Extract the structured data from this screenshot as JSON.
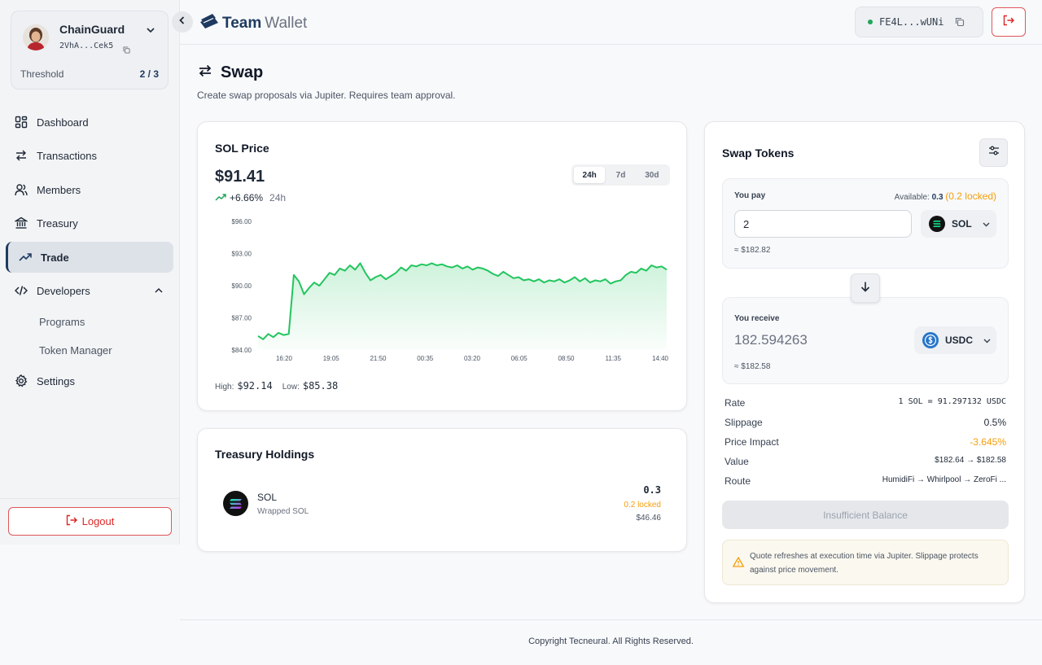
{
  "account": {
    "name": "ChainGuard",
    "address": "2VhA...Cek5",
    "threshold_label": "Threshold",
    "threshold_value": "2 / 3"
  },
  "sidebar": {
    "items": [
      {
        "label": "Dashboard",
        "icon": "dashboard-icon"
      },
      {
        "label": "Transactions",
        "icon": "arrows-icon"
      },
      {
        "label": "Members",
        "icon": "users-icon"
      },
      {
        "label": "Treasury",
        "icon": "bank-icon"
      },
      {
        "label": "Trade",
        "icon": "trend-icon",
        "active": true
      },
      {
        "label": "Developers",
        "icon": "code-icon",
        "expanded": true
      },
      {
        "label": "Settings",
        "icon": "gear-icon"
      }
    ],
    "sub_items": [
      "Programs",
      "Token Manager"
    ],
    "logout_label": "Logout"
  },
  "header": {
    "logo_strong": "Team",
    "logo_light": "Wallet",
    "wallet_address": "FE4L...wUNi"
  },
  "page": {
    "title": "Swap",
    "subtitle": "Create swap proposals via Jupiter. Requires team approval."
  },
  "price_card": {
    "title": "SOL Price",
    "price": "$91.41",
    "change": "+6.66%",
    "change_period": "24h",
    "ranges": [
      "24h",
      "7d",
      "30d"
    ],
    "active_range": "24h",
    "high_label": "High:",
    "high_value": "$92.14",
    "low_label": "Low:",
    "low_value": "$85.38"
  },
  "chart_data": {
    "type": "area",
    "title": "",
    "xlabel": "",
    "ylabel": "",
    "ylim": [
      84,
      96
    ],
    "y_ticks": [
      "$96.00",
      "$93.00",
      "$90.00",
      "$87.00",
      "$84.00"
    ],
    "x_ticks": [
      "16:20",
      "19:05",
      "21:50",
      "00:35",
      "03:20",
      "06:05",
      "08:50",
      "11:35",
      "14:40"
    ],
    "grid": false,
    "color": "#22c55e",
    "x": [
      0,
      1,
      2,
      3,
      4,
      5,
      6,
      7,
      8,
      9,
      10,
      11,
      12,
      13,
      14,
      15,
      16,
      17,
      18,
      19,
      20,
      21,
      22,
      23,
      24,
      25,
      26,
      27,
      28,
      29,
      30,
      31,
      32,
      33,
      34,
      35,
      36,
      37,
      38,
      39,
      40,
      41,
      42,
      43,
      44,
      45,
      46,
      47,
      48,
      49,
      50,
      51,
      52,
      53,
      54,
      55,
      56,
      57,
      58,
      59,
      60,
      61,
      62,
      63,
      64,
      65,
      66,
      67,
      68,
      69,
      70,
      71,
      72,
      73,
      74,
      75,
      76,
      77,
      78,
      79,
      80
    ],
    "values": [
      85.3,
      85.0,
      85.5,
      85.2,
      85.6,
      85.4,
      85.5,
      91.0,
      90.4,
      89.2,
      89.8,
      90.3,
      90.0,
      90.6,
      91.2,
      91.0,
      91.6,
      91.4,
      91.9,
      91.5,
      92.1,
      91.2,
      90.5,
      90.8,
      91.0,
      90.6,
      90.9,
      91.2,
      91.7,
      91.4,
      91.9,
      91.8,
      92.0,
      91.9,
      92.1,
      91.9,
      92.0,
      91.8,
      91.7,
      91.9,
      91.6,
      91.8,
      91.5,
      91.7,
      91.6,
      91.4,
      91.1,
      90.9,
      91.3,
      91.0,
      90.7,
      90.8,
      90.5,
      90.6,
      90.4,
      90.6,
      90.3,
      90.5,
      90.4,
      90.6,
      90.3,
      90.5,
      90.8,
      90.4,
      90.7,
      90.3,
      90.5,
      90.4,
      90.6,
      90.2,
      90.4,
      90.5,
      91.0,
      91.3,
      91.2,
      91.6,
      91.4,
      91.9,
      91.7,
      91.8,
      91.5
    ],
    "series": [
      {
        "name": "SOL",
        "values_ref": "values"
      }
    ]
  },
  "holdings": {
    "title": "Treasury Holdings",
    "items": [
      {
        "symbol": "SOL",
        "name": "Wrapped SOL",
        "amount": "0.3",
        "locked": "0.2 locked",
        "usd": "$46.46"
      }
    ]
  },
  "swap": {
    "title": "Swap Tokens",
    "pay_label": "You pay",
    "available_label": "Available:",
    "available_value": "0.3",
    "available_locked": "(0.2 locked)",
    "pay_amount": "2",
    "pay_token": "SOL",
    "pay_usd": "≈ $182.82",
    "receive_label": "You receive",
    "receive_amount": "182.594263",
    "receive_token": "USDC",
    "receive_usd": "≈ $182.58",
    "details": [
      {
        "label": "Rate",
        "value": "1 SOL = 91.297132 USDC"
      },
      {
        "label": "Slippage",
        "value": "0.5%"
      },
      {
        "label": "Price Impact",
        "value": "-3.645%"
      },
      {
        "label": "Value",
        "value": "$182.64 → $182.58"
      },
      {
        "label": "Route",
        "value": "HumidiFi → Whirlpool → ZeroFi ..."
      }
    ],
    "submit_label": "Insufficient Balance",
    "note": "Quote refreshes at execution time via Jupiter. Slippage protects against price movement."
  },
  "footer": {
    "text": "Copyright Tecneural. All Rights Reserved."
  },
  "colors": {
    "accent": "#1e3a5f",
    "positive": "#22c55e",
    "warning": "#f59e0b",
    "danger": "#dc2626"
  }
}
